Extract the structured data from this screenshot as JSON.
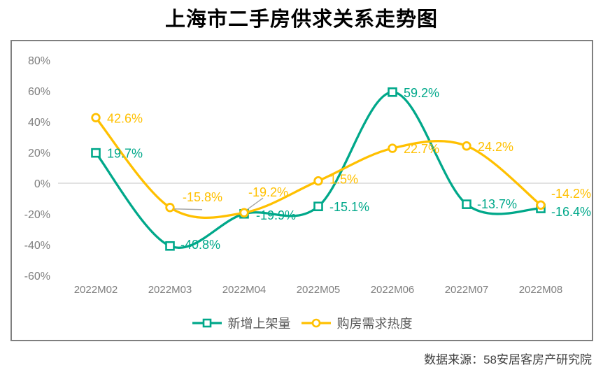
{
  "source_note": "数据来源：58安居客房产研究院",
  "colors": {
    "series_listings": "#00A88A",
    "series_demand": "#FFC000",
    "axis_text": "#7F7F7F",
    "legend_text": "#595959",
    "frame_border": "#7F7F7F",
    "zero_line": "#D9D9D9",
    "leader_line": "#A6A6A6",
    "title_text": "#000000",
    "source_text": "#3F3F3F",
    "marker_fill": "#FFFFFF"
  },
  "chart_data": {
    "type": "line",
    "title": "上海市二手房供求关系走势图",
    "smooth": true,
    "categories": [
      "2022M02",
      "2022M03",
      "2022M04",
      "2022M05",
      "2022M06",
      "2022M07",
      "2022M08"
    ],
    "series": [
      {
        "name": "新增上架量",
        "marker": "square",
        "color": "#00A88A",
        "values": [
          19.7,
          -40.8,
          -19.9,
          -15.1,
          59.2,
          -13.7,
          -16.4
        ],
        "labels": [
          "19.7%",
          "-40.8%",
          "-19.9%",
          "-15.1%",
          "59.2%",
          "-13.7%",
          "-16.4%"
        ]
      },
      {
        "name": "购房需求热度",
        "marker": "circle",
        "color": "#FFC000",
        "values": [
          42.6,
          -15.8,
          -19.2,
          1.5,
          22.7,
          24.2,
          -14.2
        ],
        "labels": [
          "42.6%",
          "-15.8%",
          "-19.2%",
          "1.5%",
          "22.7%",
          "24.2%",
          "-14.2%"
        ]
      }
    ],
    "yticks": {
      "values": [
        80,
        60,
        40,
        20,
        0,
        -20,
        -40,
        -60
      ],
      "labels": [
        "80%",
        "60%",
        "40%",
        "20%",
        "0%",
        "-20%",
        "-40%",
        "-60%"
      ]
    },
    "ylim": [
      -60,
      80
    ],
    "grid": "zero-line-only",
    "legend_position": "bottom-inside"
  }
}
